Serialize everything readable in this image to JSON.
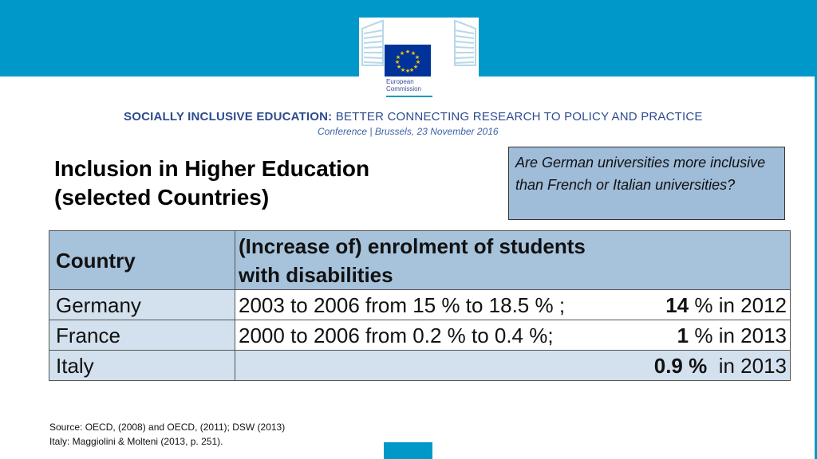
{
  "logo": {
    "org_line1": "European",
    "org_line2": "Commission"
  },
  "conference": {
    "title_bold": "SOCIALLY INCLUSIVE EDUCATION:",
    "title_rest": " BETTER CONNECTING RESEARCH TO POLICY AND PRACTICE",
    "subtitle": "Conference | Brussels, 23 November 2016"
  },
  "slide": {
    "title_line1": "Inclusion in Higher Education",
    "title_line2": "(selected Countries)"
  },
  "question": "Are German universities more inclusive than French or Italian universities?",
  "table": {
    "header_country": "Country",
    "header_enrolment_line1": "(Increase of) enrolment of students",
    "header_enrolment_line2": "with disabilities",
    "rows": [
      {
        "country": "Germany",
        "trend": "2003 to 2006 from 15 % to 18.5 % ;",
        "value": "14",
        "unit": " % in 2012"
      },
      {
        "country": "France",
        "trend": "2000 to 2006 from 0.2 % to 0.4 %;",
        "value": "1",
        "unit": " % in 2013"
      },
      {
        "country": "Italy",
        "trend": "",
        "value": "0.9 %",
        "unit": "  in 2013"
      }
    ]
  },
  "source": {
    "line1": "Source: OECD, (2008) and OECD, (2011); DSW (2013)",
    "line2": "Italy: Maggiolini & Molteni (2013, p. 251)."
  },
  "colors": {
    "brand_blue": "#0098c9",
    "header_fill": "#a7c3dc",
    "cell_fill": "#d3e1ee",
    "title_blue": "#2c4b8f"
  },
  "icons": {
    "logo": "european-commission-logo-icon"
  }
}
